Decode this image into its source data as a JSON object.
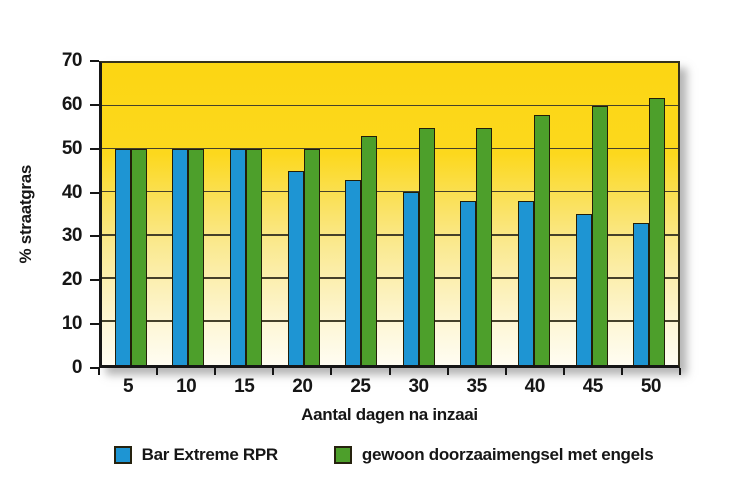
{
  "chart_data": {
    "type": "bar",
    "categories": [
      "5",
      "10",
      "15",
      "20",
      "25",
      "30",
      "35",
      "40",
      "45",
      "50"
    ],
    "series": [
      {
        "name": "Bar Extreme RPR",
        "color": "#1e95d3",
        "values": [
          50,
          50,
          50,
          45,
          43,
          40,
          38,
          38,
          35,
          33
        ]
      },
      {
        "name": "gewoon doorzaaimengsel met engels",
        "color": "#4d9f2b",
        "values": [
          50,
          50,
          50,
          50,
          53,
          55,
          55,
          58,
          60,
          62
        ]
      }
    ],
    "xlabel": "Aantal dagen na inzaai",
    "ylabel": "% straatgras",
    "ylim": [
      0,
      70
    ],
    "ytick_step": 10,
    "yticks": [
      0,
      10,
      20,
      30,
      40,
      50,
      60,
      70
    ],
    "grid": true,
    "legend_position": "bottom",
    "colors": {
      "plot_bg_top": "#fcd613",
      "plot_bg_bottom": "#fffdf2",
      "gridline": "#45412a",
      "axis": "#161616",
      "bar_outline": "#221e08"
    }
  }
}
